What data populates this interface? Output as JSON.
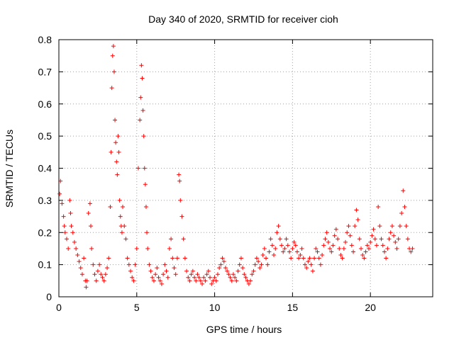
{
  "chart_data": {
    "type": "scatter",
    "title": "Day 340 of 2020, SRMTID for receiver cioh",
    "xlabel": "GPS time / hours",
    "ylabel": "SRMTID / TECUs",
    "xlim": [
      0,
      24
    ],
    "ylim": [
      0,
      0.8
    ],
    "x_ticks": [
      0,
      5,
      10,
      15,
      20
    ],
    "x_tick_labels": [
      "0",
      "5",
      "10",
      "15",
      "20"
    ],
    "y_ticks": [
      0,
      0.1,
      0.2,
      0.3,
      0.4,
      0.5,
      0.6,
      0.7,
      0.8
    ],
    "y_tick_labels": [
      "0",
      "0.1",
      "0.2",
      "0.3",
      "0.4",
      "0.5",
      "0.6",
      "0.7",
      "0.8"
    ],
    "grid": true,
    "marker": "+",
    "series_color": "#ff0000",
    "series": [
      {
        "name": "SRMTID",
        "x": [
          0.05,
          0.1,
          0.2,
          0.3,
          0.35,
          0.4,
          0.5,
          0.6,
          0.7,
          0.75,
          0.8,
          0.9,
          1.0,
          1.1,
          1.2,
          1.3,
          1.4,
          1.5,
          1.6,
          1.7,
          1.75,
          1.8,
          1.9,
          2.0,
          2.05,
          2.1,
          2.2,
          2.3,
          2.4,
          2.5,
          2.6,
          2.7,
          2.8,
          2.9,
          3.0,
          3.1,
          3.2,
          3.3,
          3.35,
          3.4,
          3.45,
          3.5,
          3.55,
          3.6,
          3.65,
          3.7,
          3.75,
          3.8,
          3.85,
          3.9,
          3.95,
          4.0,
          4.05,
          4.1,
          4.2,
          4.3,
          4.4,
          4.5,
          4.6,
          4.7,
          4.8,
          4.9,
          5.0,
          5.1,
          5.2,
          5.25,
          5.3,
          5.35,
          5.4,
          5.45,
          5.5,
          5.55,
          5.6,
          5.65,
          5.7,
          5.8,
          5.9,
          6.0,
          6.1,
          6.2,
          6.3,
          6.4,
          6.5,
          6.6,
          6.7,
          6.8,
          6.9,
          7.0,
          7.1,
          7.2,
          7.3,
          7.4,
          7.5,
          7.6,
          7.7,
          7.75,
          7.8,
          7.9,
          8.0,
          8.1,
          8.2,
          8.3,
          8.4,
          8.5,
          8.6,
          8.7,
          8.8,
          8.9,
          9.0,
          9.1,
          9.2,
          9.3,
          9.4,
          9.5,
          9.6,
          9.7,
          9.8,
          9.9,
          10.0,
          10.1,
          10.2,
          10.3,
          10.4,
          10.5,
          10.6,
          10.7,
          10.8,
          10.9,
          11.0,
          11.1,
          11.2,
          11.3,
          11.4,
          11.5,
          11.6,
          11.7,
          11.8,
          11.9,
          12.0,
          12.1,
          12.2,
          12.3,
          12.4,
          12.5,
          12.6,
          12.7,
          12.8,
          12.9,
          13.0,
          13.1,
          13.2,
          13.3,
          13.4,
          13.5,
          13.6,
          13.7,
          13.8,
          13.9,
          14.0,
          14.1,
          14.2,
          14.3,
          14.4,
          14.5,
          14.6,
          14.7,
          14.8,
          14.9,
          15.0,
          15.1,
          15.2,
          15.3,
          15.4,
          15.5,
          15.6,
          15.7,
          15.8,
          15.9,
          16.0,
          16.1,
          16.2,
          16.3,
          16.4,
          16.5,
          16.6,
          16.7,
          16.8,
          16.9,
          17.0,
          17.1,
          17.2,
          17.3,
          17.4,
          17.5,
          17.6,
          17.7,
          17.8,
          17.9,
          18.0,
          18.1,
          18.2,
          18.3,
          18.4,
          18.5,
          18.6,
          18.7,
          18.8,
          18.9,
          19.0,
          19.1,
          19.2,
          19.3,
          19.4,
          19.5,
          19.6,
          19.7,
          19.8,
          19.9,
          20.0,
          20.1,
          20.2,
          20.3,
          20.4,
          20.5,
          20.6,
          20.7,
          20.8,
          20.9,
          21.0,
          21.1,
          21.2,
          21.3,
          21.4,
          21.5,
          21.6,
          21.7,
          21.8,
          21.9,
          22.0,
          22.1,
          22.2,
          22.3,
          22.4,
          22.5,
          22.6,
          22.7
        ],
        "y": [
          0.32,
          0.36,
          0.29,
          0.25,
          0.22,
          0.2,
          0.18,
          0.15,
          0.3,
          0.26,
          0.22,
          0.2,
          0.17,
          0.15,
          0.13,
          0.11,
          0.09,
          0.07,
          0.12,
          0.05,
          0.03,
          0.05,
          0.26,
          0.29,
          0.22,
          0.15,
          0.1,
          0.07,
          0.05,
          0.08,
          0.1,
          0.07,
          0.06,
          0.05,
          0.07,
          0.09,
          0.12,
          0.28,
          0.45,
          0.65,
          0.75,
          0.78,
          0.7,
          0.55,
          0.48,
          0.42,
          0.38,
          0.5,
          0.45,
          0.3,
          0.25,
          0.22,
          0.2,
          0.28,
          0.22,
          0.18,
          0.12,
          0.1,
          0.08,
          0.06,
          0.05,
          0.1,
          0.15,
          0.4,
          0.55,
          0.62,
          0.72,
          0.68,
          0.58,
          0.5,
          0.4,
          0.35,
          0.28,
          0.2,
          0.15,
          0.1,
          0.08,
          0.06,
          0.05,
          0.07,
          0.09,
          0.06,
          0.05,
          0.04,
          0.07,
          0.1,
          0.08,
          0.06,
          0.15,
          0.18,
          0.12,
          0.09,
          0.07,
          0.12,
          0.38,
          0.36,
          0.3,
          0.25,
          0.18,
          0.12,
          0.08,
          0.06,
          0.05,
          0.07,
          0.08,
          0.06,
          0.05,
          0.07,
          0.06,
          0.05,
          0.04,
          0.06,
          0.05,
          0.07,
          0.08,
          0.06,
          0.04,
          0.05,
          0.06,
          0.05,
          0.07,
          0.09,
          0.1,
          0.12,
          0.11,
          0.09,
          0.08,
          0.07,
          0.06,
          0.05,
          0.07,
          0.06,
          0.05,
          0.08,
          0.1,
          0.12,
          0.09,
          0.07,
          0.06,
          0.05,
          0.04,
          0.05,
          0.07,
          0.08,
          0.1,
          0.12,
          0.11,
          0.09,
          0.1,
          0.13,
          0.15,
          0.12,
          0.1,
          0.14,
          0.18,
          0.16,
          0.13,
          0.15,
          0.2,
          0.22,
          0.18,
          0.16,
          0.14,
          0.15,
          0.18,
          0.16,
          0.14,
          0.12,
          0.15,
          0.17,
          0.16,
          0.14,
          0.12,
          0.13,
          0.15,
          0.12,
          0.1,
          0.09,
          0.11,
          0.12,
          0.1,
          0.08,
          0.12,
          0.15,
          0.14,
          0.12,
          0.1,
          0.13,
          0.16,
          0.18,
          0.2,
          0.17,
          0.15,
          0.14,
          0.16,
          0.19,
          0.21,
          0.18,
          0.15,
          0.13,
          0.12,
          0.15,
          0.17,
          0.2,
          0.22,
          0.19,
          0.16,
          0.14,
          0.22,
          0.27,
          0.24,
          0.18,
          0.15,
          0.13,
          0.12,
          0.14,
          0.16,
          0.15,
          0.17,
          0.19,
          0.21,
          0.18,
          0.16,
          0.28,
          0.22,
          0.18,
          0.16,
          0.14,
          0.12,
          0.15,
          0.18,
          0.2,
          0.22,
          0.19,
          0.17,
          0.15,
          0.18,
          0.22,
          0.26,
          0.33,
          0.28,
          0.22,
          0.18,
          0.15,
          0.14,
          0.15
        ]
      }
    ]
  }
}
